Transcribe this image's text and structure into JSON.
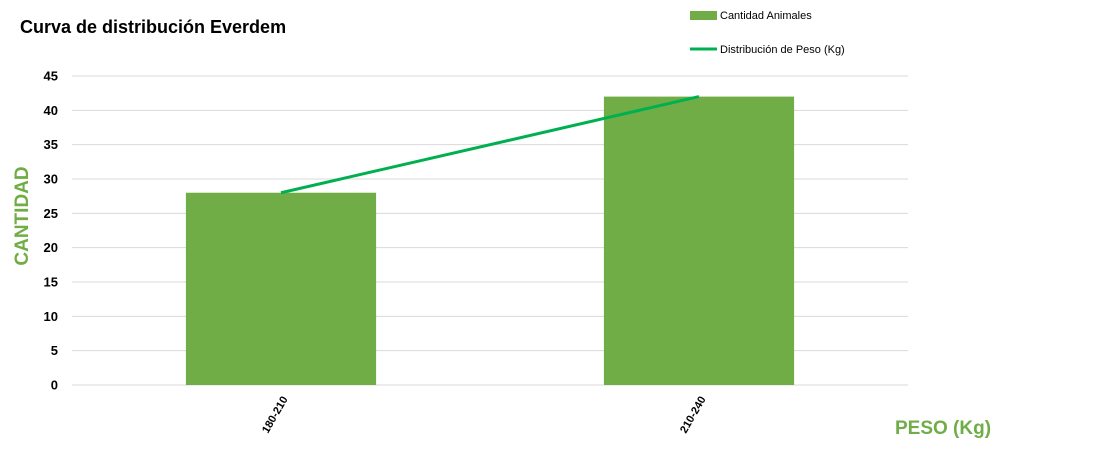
{
  "chart_data": {
    "type": "bar",
    "title": "Curva de distribución Everdem",
    "xlabel": "PESO (Kg)",
    "ylabel": "CANTIDAD",
    "categories": [
      "180-210",
      "210-240"
    ],
    "series": [
      {
        "name": "Cantidad Animales",
        "type": "bar",
        "values": [
          28,
          42
        ]
      },
      {
        "name": "Distribución de Peso (Kg)",
        "type": "line",
        "values": [
          28,
          42
        ]
      }
    ],
    "ylim": [
      0,
      45
    ],
    "yticks": [
      0,
      5,
      10,
      15,
      20,
      25,
      30,
      35,
      40,
      45
    ],
    "grid": true,
    "legend_position": "top-right",
    "colors": {
      "bar": "#70ad47",
      "line": "#00b050",
      "axis_label": "#70ad47",
      "grid": "#d9d9d9"
    }
  }
}
